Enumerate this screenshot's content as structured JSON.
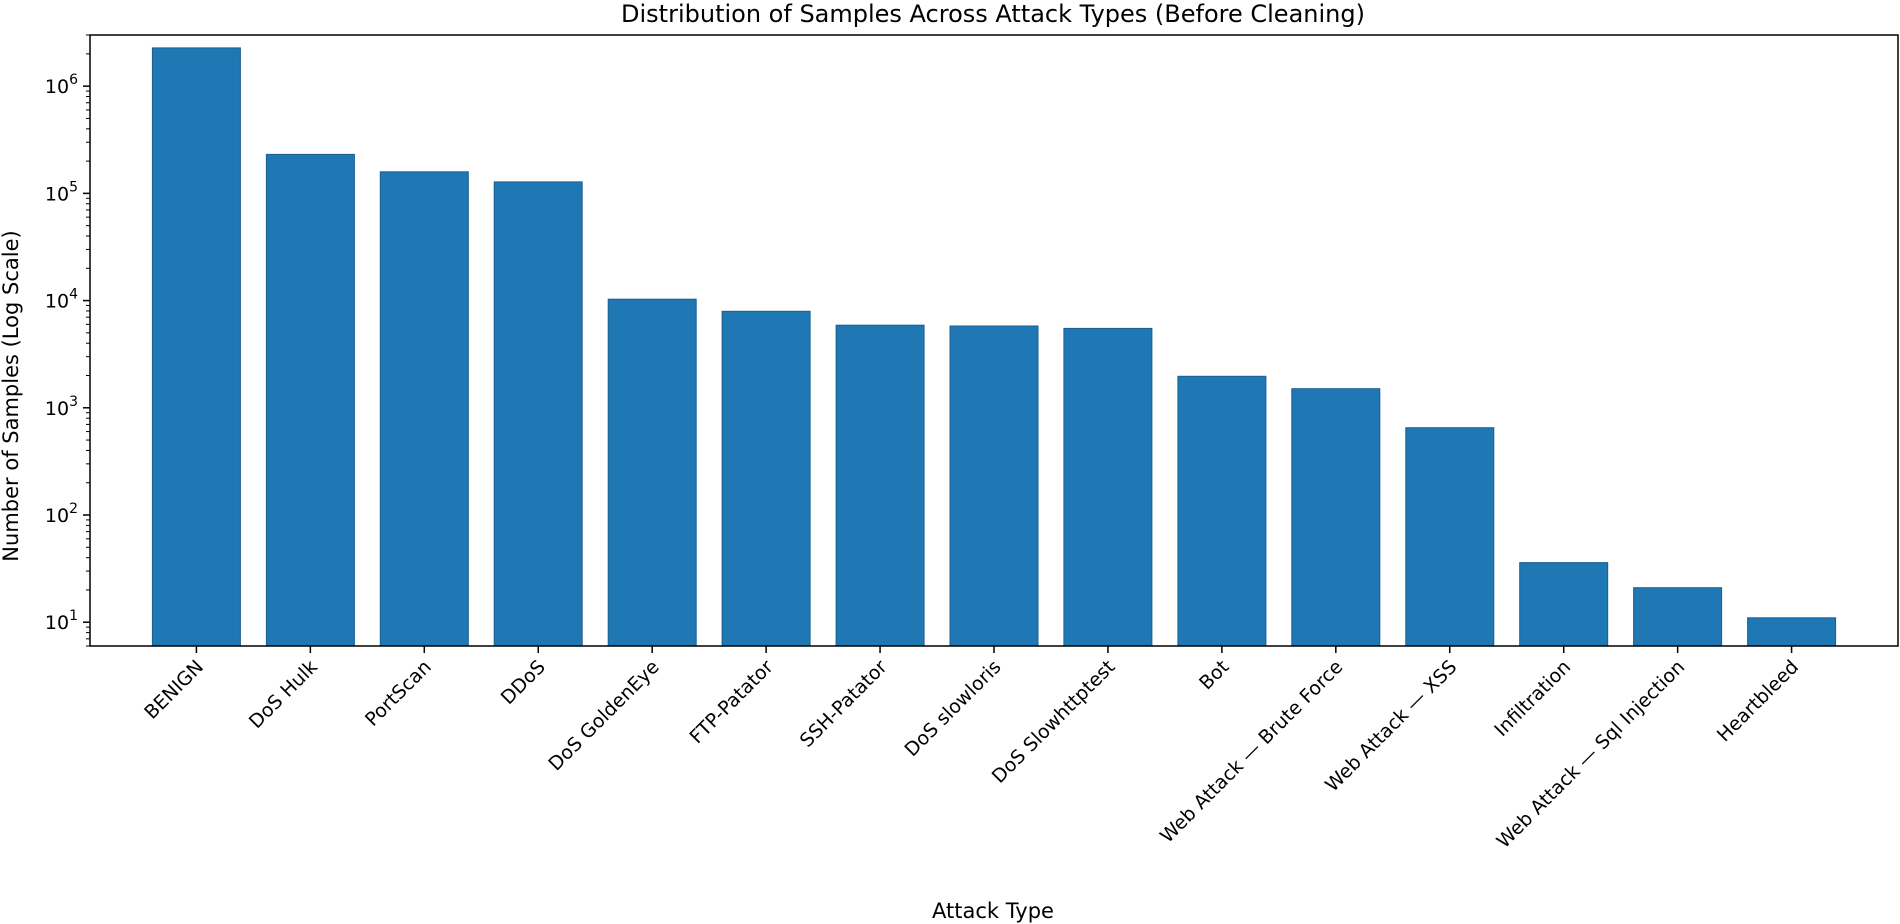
{
  "chart_data": {
    "type": "bar",
    "title": "Distribution of Samples Across Attack Types (Before Cleaning)",
    "xlabel": "Attack Type",
    "ylabel": "Number of Samples (Log Scale)",
    "yscale": "log",
    "ylim": [
      6,
      3000000
    ],
    "yticks": [
      {
        "value": 10,
        "base": "10",
        "exp": "1"
      },
      {
        "value": 100,
        "base": "10",
        "exp": "2"
      },
      {
        "value": 1000,
        "base": "10",
        "exp": "3"
      },
      {
        "value": 10000,
        "base": "10",
        "exp": "4"
      },
      {
        "value": 100000,
        "base": "10",
        "exp": "5"
      },
      {
        "value": 1000000,
        "base": "10",
        "exp": "6"
      }
    ],
    "categories": [
      "BENIGN",
      "DoS Hulk",
      "PortScan",
      "DDoS",
      "DoS GoldenEye",
      "FTP-Patator",
      "SSH-Patator",
      "DoS slowloris",
      "DoS Slowhttptest",
      "Bot",
      "Web Attack — Brute Force",
      "Web Attack — XSS",
      "Infiltration",
      "Web Attack — Sql Injection",
      "Heartbleed"
    ],
    "values": [
      2273097,
      231073,
      158930,
      128027,
      10293,
      7938,
      5897,
      5796,
      5499,
      1966,
      1507,
      652,
      36,
      21,
      11
    ],
    "color": "#1f77b4",
    "grid": false,
    "legend": "none"
  }
}
